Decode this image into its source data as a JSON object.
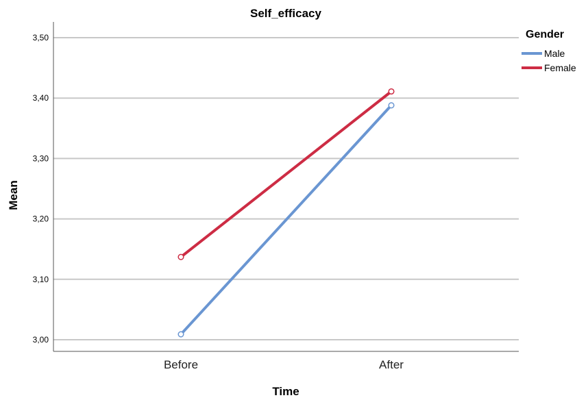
{
  "chart_data": {
    "type": "line",
    "title": "Self_efficacy",
    "xlabel": "Time",
    "ylabel": "Mean",
    "categories": [
      "Before",
      "After"
    ],
    "y_tick_labels": [
      "3,00",
      "3,10",
      "3,20",
      "3,30",
      "3,40",
      "3,50"
    ],
    "y_ticks": [
      3.0,
      3.1,
      3.2,
      3.3,
      3.4,
      3.5
    ],
    "ylim": [
      2.98,
      3.52
    ],
    "grid": true,
    "legend": {
      "title": "Gender",
      "placement": "top-right"
    },
    "series": [
      {
        "name": "Male",
        "values": [
          3.009,
          3.388
        ],
        "color": "#6a96d2"
      },
      {
        "name": "Female",
        "values": [
          3.137,
          3.411
        ],
        "color": "#cd2c44"
      }
    ]
  }
}
